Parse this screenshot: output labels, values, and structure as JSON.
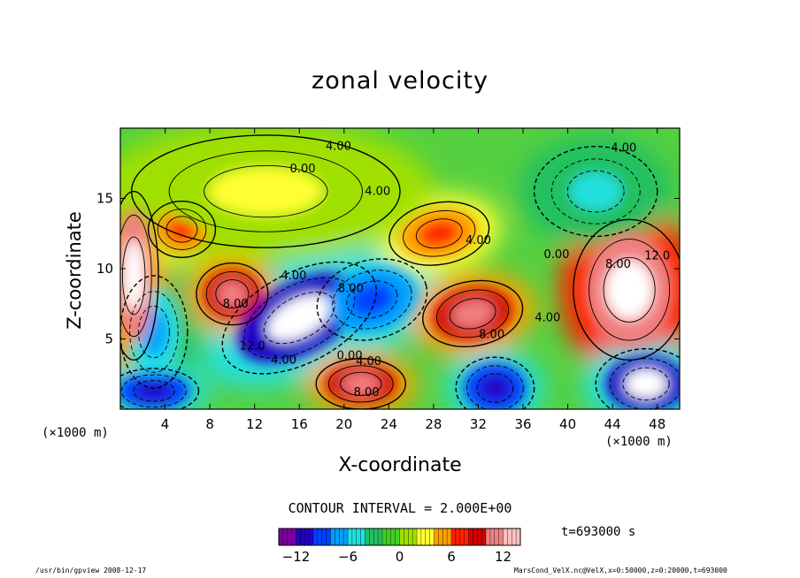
{
  "chart_data": {
    "type": "heatmap",
    "title": "zonal velocity",
    "xlabel": "X-coordinate",
    "ylabel": "Z-coordinate",
    "x_unit": "(×1000 m)",
    "xlim": [
      0,
      50
    ],
    "ylim": [
      0,
      20
    ],
    "x_ticks": [
      4,
      8,
      12,
      16,
      20,
      24,
      28,
      32,
      36,
      40,
      44,
      48
    ],
    "y_ticks": [
      5,
      10,
      15
    ],
    "contour_interval_text": "CONTOUR INTERVAL = 2.000E+00",
    "contour_labels": [
      {
        "text": "4.00",
        "x": 19.5,
        "z": 18.7
      },
      {
        "text": "4.00",
        "x": 45.0,
        "z": 18.6
      },
      {
        "text": "0.00",
        "x": 16.3,
        "z": 17.1
      },
      {
        "text": "4.00",
        "x": 23.0,
        "z": 15.5
      },
      {
        "text": "4.00",
        "x": 32.0,
        "z": 12.0
      },
      {
        "text": "0.00",
        "x": 39.0,
        "z": 11.0
      },
      {
        "text": "8.00",
        "x": 44.5,
        "z": 10.3
      },
      {
        "text": "12.0",
        "x": 48.0,
        "z": 10.9
      },
      {
        "text": "4.00",
        "x": 15.5,
        "z": 9.5
      },
      {
        "text": "8.00",
        "x": 20.6,
        "z": 8.6
      },
      {
        "text": "8.00",
        "x": 10.3,
        "z": 7.5
      },
      {
        "text": "12.0",
        "x": 11.8,
        "z": 4.5
      },
      {
        "text": "8.00",
        "x": 33.2,
        "z": 5.3
      },
      {
        "text": "4.00",
        "x": 38.2,
        "z": 6.5
      },
      {
        "text": "4.00",
        "x": 14.6,
        "z": 3.5
      },
      {
        "text": "0.00",
        "x": 20.5,
        "z": 3.8
      },
      {
        "text": "4.00",
        "x": 22.2,
        "z": 3.4
      },
      {
        "text": "8.00",
        "x": 22.0,
        "z": 1.2
      }
    ],
    "features": [
      {
        "x": 16.0,
        "z": 6.5,
        "rx": 7.5,
        "rz": 3.2,
        "v": -13,
        "rot": -28
      },
      {
        "x": 22.5,
        "z": 7.8,
        "rx": 5.0,
        "rz": 2.8,
        "v": -10,
        "rot": -15
      },
      {
        "x": 10.0,
        "z": 8.2,
        "rx": 3.2,
        "rz": 2.2,
        "v": 11,
        "rot": 0
      },
      {
        "x": 3.0,
        "z": 5.5,
        "rx": 3.0,
        "rz": 4.0,
        "v": -7,
        "rot": 0
      },
      {
        "x": 1.2,
        "z": 9.5,
        "rx": 2.2,
        "rz": 6.0,
        "v": 13,
        "rot": 0
      },
      {
        "x": 31.5,
        "z": 6.8,
        "rx": 4.5,
        "rz": 2.3,
        "v": 11,
        "rot": -10
      },
      {
        "x": 33.5,
        "z": 1.5,
        "rx": 3.5,
        "rz": 2.2,
        "v": -12,
        "rot": 0
      },
      {
        "x": 45.5,
        "z": 8.5,
        "rx": 5.0,
        "rz": 5.0,
        "v": 14,
        "rot": 0
      },
      {
        "x": 47.0,
        "z": 1.8,
        "rx": 4.5,
        "rz": 2.5,
        "v": -13,
        "rot": 0
      },
      {
        "x": 21.5,
        "z": 1.8,
        "rx": 4.0,
        "rz": 1.8,
        "v": 10,
        "rot": 0
      },
      {
        "x": 3.0,
        "z": 1.3,
        "rx": 4.0,
        "rz": 1.6,
        "v": -11,
        "rot": 0
      },
      {
        "x": 42.5,
        "z": 15.5,
        "rx": 5.5,
        "rz": 3.2,
        "v": -5,
        "rot": 0
      },
      {
        "x": 28.5,
        "z": 12.5,
        "rx": 4.5,
        "rz": 2.2,
        "v": 6,
        "rot": -10
      },
      {
        "x": 5.5,
        "z": 12.8,
        "rx": 3.0,
        "rz": 2.0,
        "v": 6,
        "rot": 0
      },
      {
        "x": 13.0,
        "z": 15.5,
        "rx": 12.0,
        "rz": 4.0,
        "v": 2,
        "rot": 0
      }
    ],
    "colorbar": {
      "ticks": [
        -12,
        -6,
        0,
        6,
        12
      ],
      "range": [
        -14,
        14
      ],
      "colors": [
        "#7a00a0",
        "#2000c8",
        "#0040ff",
        "#00a0ff",
        "#20e0e0",
        "#20c060",
        "#40d020",
        "#a0e000",
        "#ffff30",
        "#ffa000",
        "#ff2000",
        "#d00000",
        "#f08080",
        "#ffc0c0"
      ]
    },
    "time_label": "t=693000 s"
  },
  "footer": {
    "left": "/usr/bin/gpview  2008-12-17",
    "right": "MarsCond_VelX.nc@VelX,x=0:50000,z=0:20000,t=693000"
  }
}
